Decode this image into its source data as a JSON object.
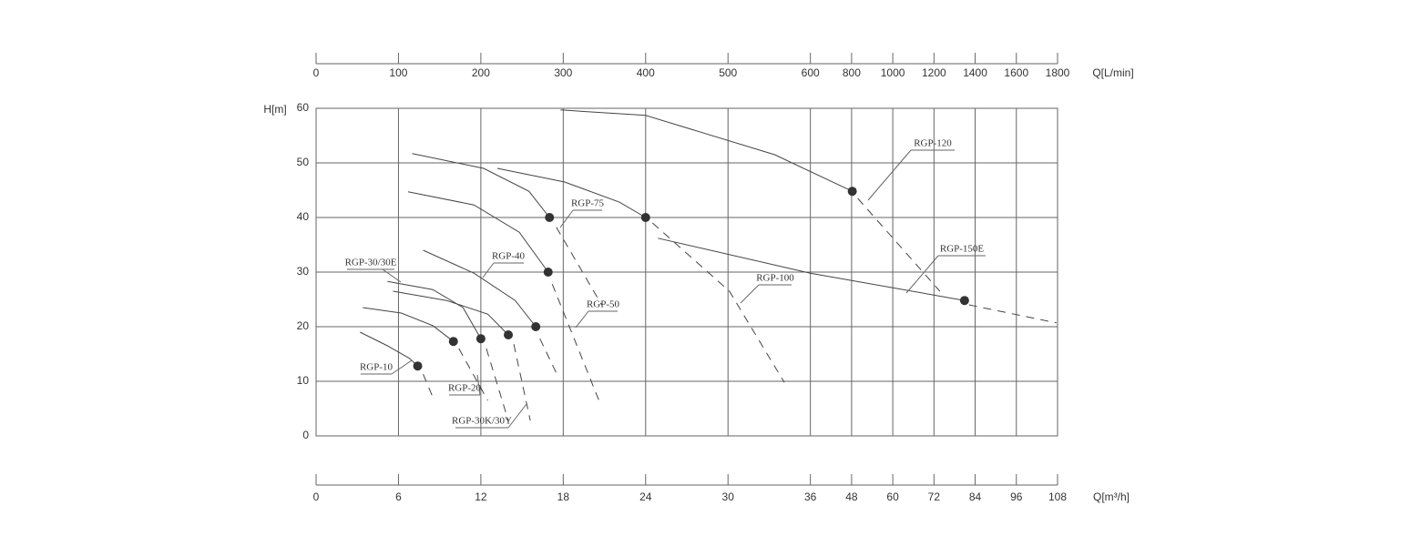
{
  "chart_data": {
    "type": "line",
    "y_label": "H[m]",
    "x_label": "Q[m³/h]",
    "x2_label": "Q[L/min]",
    "xlim": [
      0,
      108
    ],
    "xticks": [
      0,
      6,
      12,
      18,
      24,
      30,
      36,
      48,
      60,
      72,
      84,
      96,
      108
    ],
    "x2lim": [
      0,
      1800
    ],
    "x2ticks": [
      0,
      100,
      200,
      300,
      400,
      500,
      600,
      800,
      1000,
      1200,
      1400,
      1600,
      1800
    ],
    "ylim": [
      0,
      60
    ],
    "yticks": [
      0,
      10,
      20,
      30,
      40,
      50,
      60
    ],
    "grid": true,
    "series": [
      {
        "name": "RGP-10",
        "color": "#444",
        "x": [
          3.2,
          5.2,
          6.8,
          7.4
        ],
        "values": [
          19,
          16.5,
          14.2,
          12.8
        ],
        "dashed_x": [
          7.8,
          8.6
        ],
        "dashed_values": [
          11.3,
          6.5
        ],
        "point_x": 7.4,
        "point_y": 12.8
      },
      {
        "name": "RGP-20",
        "color": "#444",
        "x": [
          3.4,
          6.2,
          8.5,
          10
        ],
        "values": [
          23.5,
          22.5,
          20.2,
          17.3
        ],
        "dashed_x": [
          10.4,
          12.5
        ],
        "dashed_values": [
          16,
          6.5
        ],
        "point_x": 10,
        "point_y": 17.3
      },
      {
        "name": "RGP-30/30E",
        "color": "#444",
        "x": [
          5.2,
          8.5,
          10.7,
          12
        ],
        "values": [
          28.3,
          26.8,
          23.5,
          17.8
        ],
        "dashed_x": [
          12.4,
          14
        ],
        "dashed_values": [
          16,
          2.8
        ],
        "point_x": 12,
        "point_y": 17.8
      },
      {
        "name": "RGP-30K/30Y",
        "color": "#444",
        "x": [
          5.6,
          9.5,
          12.5,
          14
        ],
        "values": [
          26.5,
          24.8,
          22.3,
          18.5
        ],
        "dashed_x": [
          14.4,
          15.6
        ],
        "dashed_values": [
          16.8,
          2.8
        ],
        "point_x": 14,
        "point_y": 18.5
      },
      {
        "name": "RGP-40",
        "color": "#444",
        "x": [
          7.8,
          11.5,
          14.5,
          16
        ],
        "values": [
          34,
          29.8,
          24.8,
          20
        ],
        "dashed_x": [
          16.3,
          17.5
        ],
        "dashed_values": [
          17.8,
          11.5
        ],
        "point_x": 16,
        "point_y": 20
      },
      {
        "name": "RGP-50",
        "color": "#444",
        "x": [
          6.7,
          11.5,
          14.8,
          16.9
        ],
        "values": [
          44.7,
          42.3,
          37.3,
          30
        ],
        "dashed_x": [
          17.2,
          20.6
        ],
        "dashed_values": [
          27.8,
          6.5
        ],
        "point_x": 16.9,
        "point_y": 30
      },
      {
        "name": "RGP-75",
        "color": "#444",
        "x": [
          7,
          12.2,
          15.5,
          17
        ],
        "values": [
          51.7,
          49,
          44.8,
          40
        ],
        "dashed_x": [
          17.5,
          20.8
        ],
        "dashed_values": [
          38.2,
          24
        ],
        "point_x": 17,
        "point_y": 40
      },
      {
        "name": "RGP-100",
        "color": "#444",
        "x": [
          13.2,
          18.1,
          22.1,
          24
        ],
        "values": [
          49,
          46.5,
          42.8,
          40
        ],
        "dashed_x": [
          24.5,
          30.1,
          34.1
        ],
        "dashed_values": [
          39,
          26.5,
          9.8
        ],
        "point_x": 24,
        "point_y": 40
      },
      {
        "name": "RGP-120",
        "color": "#444",
        "x": [
          17.8,
          24,
          33.4,
          48.2
        ],
        "values": [
          59.7,
          58.7,
          51.5,
          44.8
        ],
        "dashed_x": [
          49.8,
          73.7
        ],
        "dashed_values": [
          43.5,
          26.5
        ],
        "point_x": 48.2,
        "point_y": 44.8
      },
      {
        "name": "RGP-150E",
        "color": "#444",
        "x": [
          24.9,
          36,
          80.9
        ],
        "values": [
          36.2,
          29.8,
          24.8
        ],
        "dashed_x": [
          82.2,
          107.7
        ],
        "dashed_values": [
          24,
          20.7
        ],
        "point_x": 80.9,
        "point_y": 24.8
      }
    ]
  }
}
